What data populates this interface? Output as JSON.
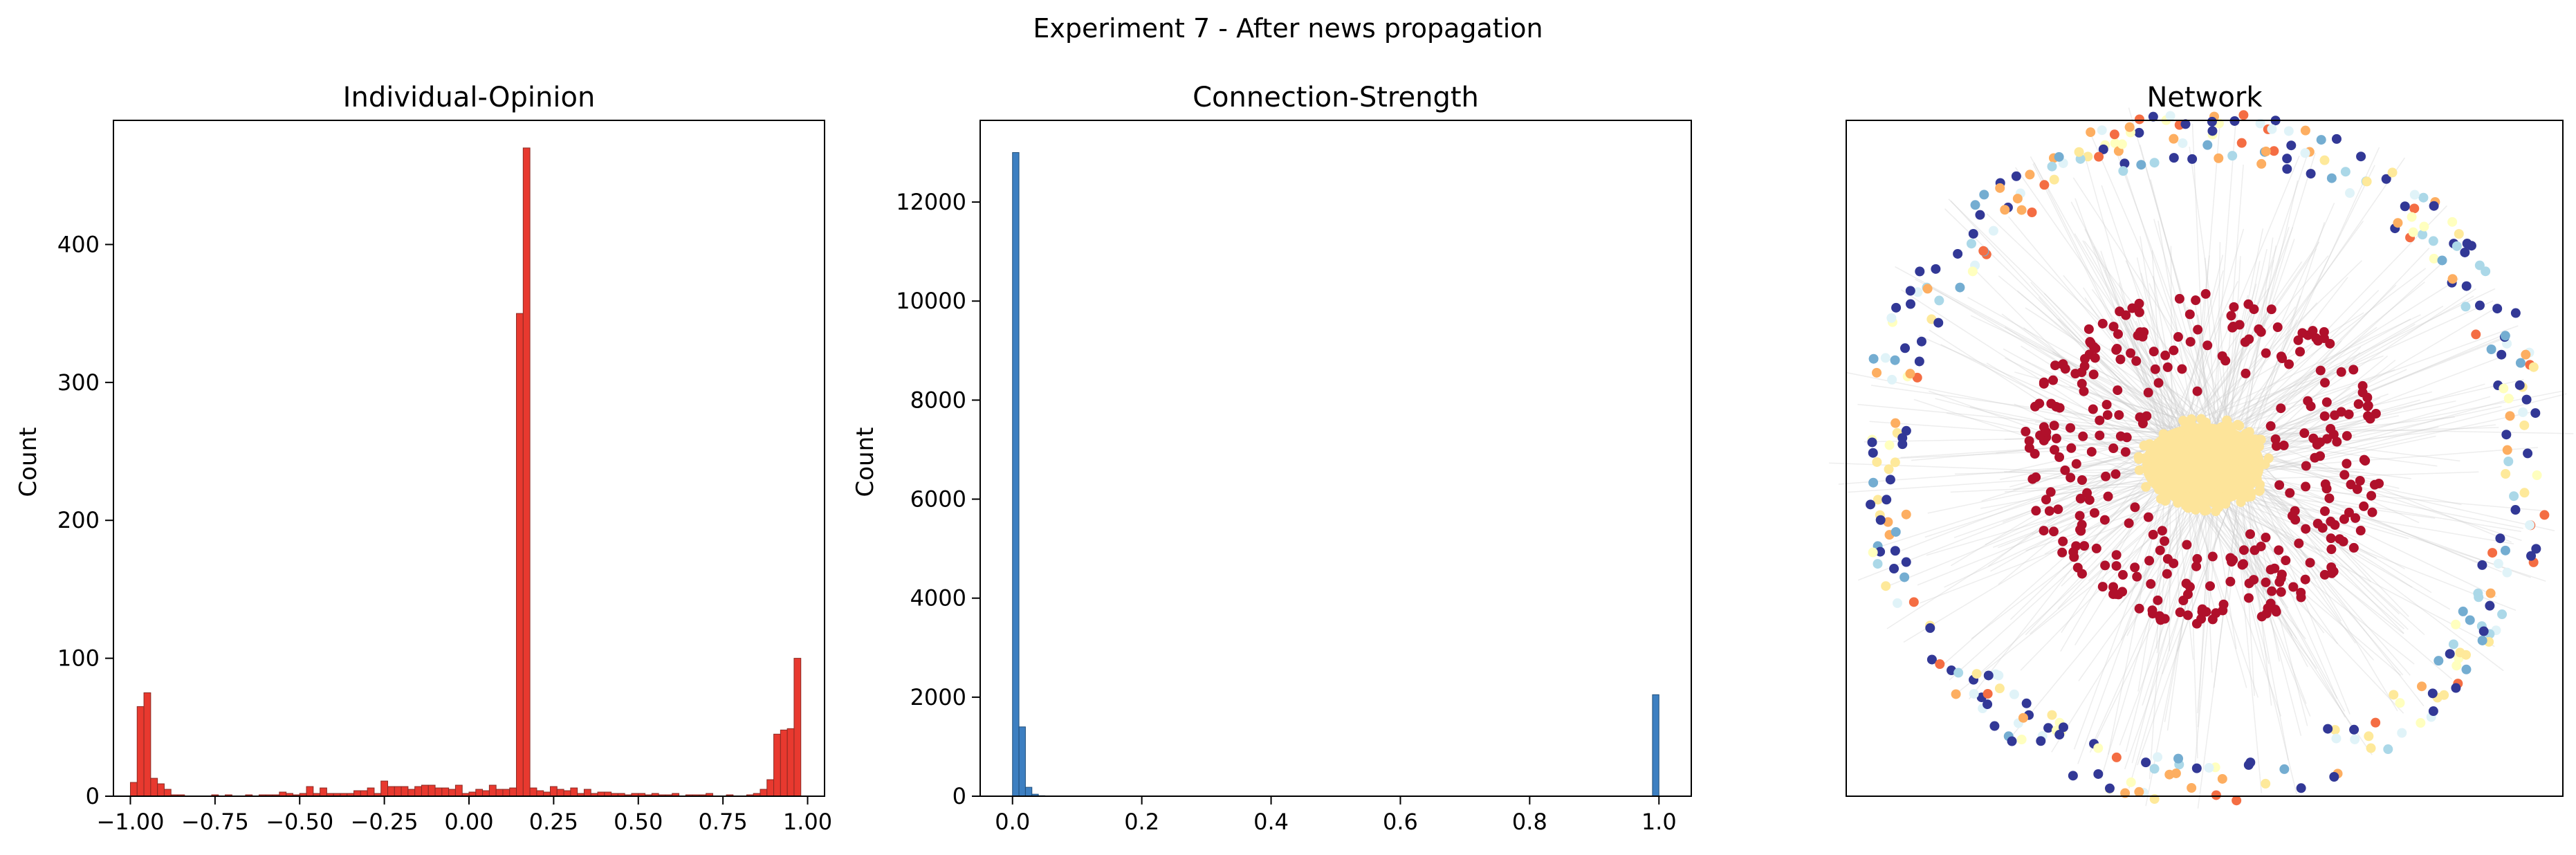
{
  "figure": {
    "suptitle": "Experiment 7 - After news propagation"
  },
  "chart_data": [
    {
      "type": "bar",
      "title": "Individual-Opinion",
      "xlabel": "",
      "ylabel": "Count",
      "xlim": [
        -1.05,
        1.05
      ],
      "ylim": [
        0,
        490
      ],
      "xticks": [
        -1.0,
        -0.75,
        -0.5,
        -0.25,
        0.0,
        0.25,
        0.5,
        0.75,
        1.0
      ],
      "xtick_labels": [
        "−1.00",
        "−0.75",
        "−0.50",
        "−0.25",
        "0.00",
        "0.25",
        "0.50",
        "0.75",
        "1.00"
      ],
      "yticks": [
        0,
        100,
        200,
        300,
        400
      ],
      "ytick_labels": [
        "0",
        "100",
        "200",
        "300",
        "400"
      ],
      "bin_start": -1.0,
      "bin_width": 0.02,
      "counts": [
        10,
        65,
        75,
        13,
        9,
        5,
        1,
        1,
        0,
        0,
        0,
        0,
        1,
        0,
        1,
        0,
        0,
        1,
        0,
        1,
        1,
        1,
        3,
        2,
        1,
        2,
        7,
        2,
        6,
        2,
        2,
        2,
        2,
        4,
        4,
        6,
        2,
        11,
        7,
        7,
        7,
        5,
        7,
        8,
        8,
        6,
        6,
        5,
        8,
        2,
        3,
        5,
        4,
        8,
        5,
        5,
        6,
        350,
        470,
        6,
        4,
        3,
        7,
        5,
        4,
        6,
        2,
        5,
        2,
        3,
        3,
        2,
        2,
        1,
        2,
        2,
        1,
        2,
        1,
        1,
        2,
        0,
        1,
        1,
        1,
        2,
        0,
        0,
        1,
        0,
        0,
        1,
        2,
        5,
        12,
        45,
        48,
        49,
        100,
        0
      ],
      "color": "#e8392f",
      "edge_color": "#8b2a23"
    },
    {
      "type": "bar",
      "title": "Connection-Strength",
      "xlabel": "",
      "ylabel": "Count",
      "xlim": [
        -0.05,
        1.05
      ],
      "ylim": [
        0,
        13650
      ],
      "xticks": [
        0.0,
        0.2,
        0.4,
        0.6,
        0.8,
        1.0
      ],
      "xtick_labels": [
        "0.0",
        "0.2",
        "0.4",
        "0.6",
        "0.8",
        "1.0"
      ],
      "yticks": [
        0,
        2000,
        4000,
        6000,
        8000,
        10000,
        12000
      ],
      "ytick_labels": [
        "0",
        "2000",
        "4000",
        "6000",
        "8000",
        "10000",
        "12000"
      ],
      "bin_start": 0.0,
      "bin_width": 0.01,
      "nonzero_bins": [
        {
          "x": 0.0,
          "count": 13000
        },
        {
          "x": 0.01,
          "count": 1400
        },
        {
          "x": 0.02,
          "count": 180
        },
        {
          "x": 0.03,
          "count": 40
        },
        {
          "x": 0.04,
          "count": 10
        },
        {
          "x": 0.99,
          "count": 2050
        }
      ],
      "color": "#3d7fc1",
      "edge_color": "#1f4e7a"
    },
    {
      "type": "network",
      "title": "Network",
      "node_colors": {
        "center_cluster": "#fde49a",
        "inner_ring": "#b0102b",
        "outer_ring": [
          "#323896",
          "#323896",
          "#323896",
          "#fee99a",
          "#abd8e8",
          "#fdae61",
          "#74add1",
          "#f46d43",
          "#ffffbf",
          "#e0f3f8"
        ]
      },
      "edge_color": "#cccccc",
      "node_counts": {
        "inner_ring": 320,
        "outer_ring": 340
      }
    }
  ]
}
